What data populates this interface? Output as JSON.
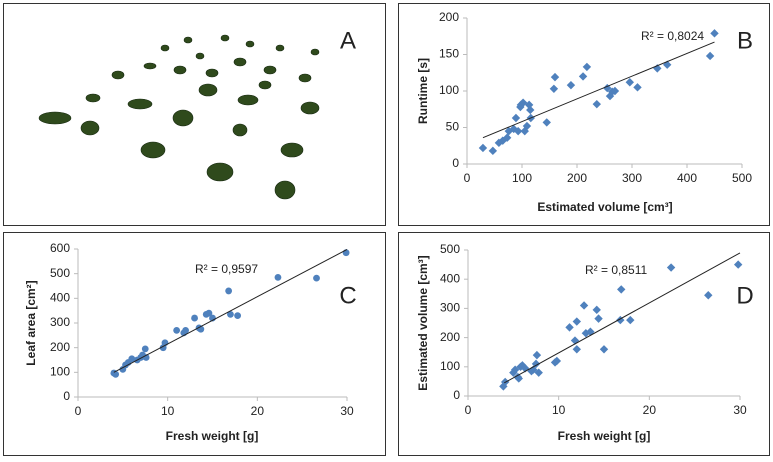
{
  "panel_a": {
    "label": "A"
  },
  "chart_data": [
    {
      "type": "scatter",
      "panel_label": "B",
      "x_label": "Estimated volume [cm³]",
      "y_label": "Runtime [s]",
      "annotation": "R² = 0,8024",
      "marker": "diamond",
      "color": "#4f81bd",
      "x": [
        29,
        47,
        58,
        65,
        73,
        76,
        85,
        93,
        89,
        98,
        102,
        97,
        105,
        109,
        115,
        113,
        116,
        145,
        160,
        158,
        189,
        211,
        218,
        236,
        255,
        260,
        264,
        269,
        296,
        310,
        346,
        364,
        442,
        450
      ],
      "values": [
        22,
        18,
        29,
        32,
        36,
        45,
        48,
        45,
        63,
        81,
        84,
        78,
        45,
        52,
        74,
        81,
        63,
        57,
        119,
        103,
        108,
        120,
        133,
        82,
        104,
        93,
        99,
        100,
        112,
        105,
        131,
        136,
        148,
        179
      ],
      "trendline": {
        "x": [
          29,
          450
        ],
        "y": [
          36,
          167
        ]
      },
      "xlim": [
        0,
        500
      ],
      "xticks": [
        0,
        100,
        200,
        300,
        400,
        500
      ],
      "ylim": [
        0,
        200
      ],
      "yticks": [
        0,
        50,
        100,
        150,
        200
      ]
    },
    {
      "type": "scatter",
      "panel_label": "C",
      "x_label": "Fresh weight [g]",
      "y_label": "Leaf area [cm²]",
      "annotation": "R² = 0,9597",
      "marker": "circle",
      "color": "#4f81bd",
      "x": [
        4,
        4.2,
        5,
        5.3,
        5.6,
        6,
        6.6,
        7,
        7.2,
        7.5,
        7.6,
        9.5,
        9.7,
        11,
        11.8,
        12,
        13,
        13.5,
        13.7,
        14.3,
        14.6,
        15,
        16.8,
        17,
        17.8,
        22.3,
        26.6,
        29.9
      ],
      "values": [
        97,
        92,
        112,
        130,
        140,
        155,
        150,
        160,
        170,
        195,
        160,
        200,
        220,
        270,
        260,
        270,
        320,
        280,
        275,
        335,
        340,
        320,
        430,
        335,
        330,
        485,
        482,
        585
      ],
      "trendline": {
        "x": [
          4,
          30
        ],
        "y": [
          100,
          598
        ]
      },
      "xlim": [
        0,
        30
      ],
      "xticks": [
        0,
        10,
        20,
        30
      ],
      "ylim": [
        0,
        600
      ],
      "yticks": [
        0,
        100,
        200,
        300,
        400,
        500,
        600
      ]
    },
    {
      "type": "scatter",
      "panel_label": "D",
      "x_label": "Fresh weight [g]",
      "y_label": "Estimated volume [cm³]",
      "annotation": "R² = 0,8511",
      "marker": "diamond",
      "color": "#4f81bd",
      "x": [
        3.9,
        4.1,
        5,
        5.2,
        5.5,
        5.6,
        5.8,
        6,
        6.3,
        7,
        7.2,
        7.5,
        7.6,
        7.8,
        9.6,
        9.8,
        11.2,
        11.8,
        12,
        12,
        12.8,
        13,
        13.5,
        14.2,
        14.4,
        15,
        16.9,
        16.8,
        17.9,
        22.4,
        26.5,
        29.8
      ],
      "values": [
        33,
        48,
        80,
        90,
        65,
        60,
        100,
        105,
        95,
        85,
        90,
        110,
        140,
        80,
        115,
        120,
        235,
        190,
        255,
        160,
        310,
        215,
        220,
        295,
        265,
        160,
        365,
        260,
        260,
        440,
        345,
        450
      ],
      "trendline": {
        "x": [
          4,
          30
        ],
        "y": [
          45,
          490
        ]
      },
      "xlim": [
        0,
        30
      ],
      "xticks": [
        0,
        10,
        20,
        30
      ],
      "ylim": [
        0,
        500
      ],
      "yticks": [
        0,
        100,
        200,
        300,
        400,
        500
      ]
    }
  ]
}
